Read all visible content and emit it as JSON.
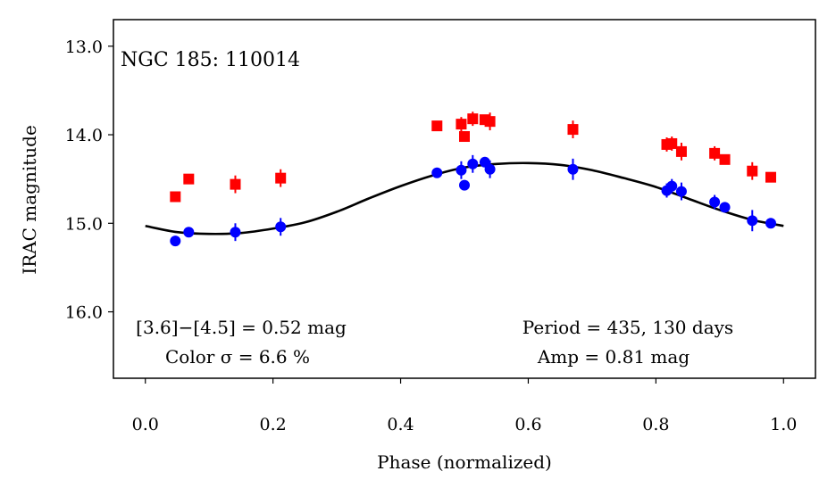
{
  "chart_data": {
    "type": "scatter",
    "title": "NGC 185:  110014",
    "xlabel": "Phase (normalized)",
    "ylabel": "IRAC magnitude",
    "xlim": [
      -0.05,
      1.05
    ],
    "ylim": [
      16.75,
      12.7
    ],
    "y_inverted": true,
    "grid": false,
    "x_ticks": [
      0.0,
      0.2,
      0.4,
      0.6,
      0.8,
      1.0
    ],
    "x_tick_labels": [
      "0.0",
      "0.2",
      "0.4",
      "0.6",
      "0.8",
      "1.0"
    ],
    "y_ticks": [
      13.0,
      14.0,
      15.0,
      16.0
    ],
    "y_tick_labels": [
      "13.0",
      "14.0",
      "15.0",
      "16.0"
    ],
    "series": [
      {
        "name": "[3.6] (blue circles)",
        "color": "#0000ff",
        "marker": "circle",
        "points": [
          {
            "x": 0.047,
            "y": 15.2,
            "err": 0.0
          },
          {
            "x": 0.068,
            "y": 15.1,
            "err": 0.0
          },
          {
            "x": 0.141,
            "y": 15.1,
            "err": 0.1
          },
          {
            "x": 0.212,
            "y": 15.04,
            "err": 0.1
          },
          {
            "x": 0.457,
            "y": 14.43,
            "err": 0.0
          },
          {
            "x": 0.495,
            "y": 14.4,
            "err": 0.1
          },
          {
            "x": 0.5,
            "y": 14.57,
            "err": 0.0
          },
          {
            "x": 0.513,
            "y": 14.33,
            "err": 0.1
          },
          {
            "x": 0.532,
            "y": 14.31,
            "err": 0.0
          },
          {
            "x": 0.54,
            "y": 14.39,
            "err": 0.1
          },
          {
            "x": 0.67,
            "y": 14.39,
            "err": 0.12
          },
          {
            "x": 0.817,
            "y": 14.63,
            "err": 0.08
          },
          {
            "x": 0.825,
            "y": 14.58,
            "err": 0.08
          },
          {
            "x": 0.84,
            "y": 14.64,
            "err": 0.1
          },
          {
            "x": 0.892,
            "y": 14.76,
            "err": 0.08
          },
          {
            "x": 0.908,
            "y": 14.82,
            "err": 0.0
          },
          {
            "x": 0.951,
            "y": 14.97,
            "err": 0.12
          },
          {
            "x": 0.98,
            "y": 15.0,
            "err": 0.0
          }
        ]
      },
      {
        "name": "[4.5] (red squares)",
        "color": "#ff0000",
        "marker": "square",
        "points": [
          {
            "x": 0.047,
            "y": 14.7,
            "err": 0.05
          },
          {
            "x": 0.068,
            "y": 14.5,
            "err": 0.0
          },
          {
            "x": 0.141,
            "y": 14.56,
            "err": 0.1
          },
          {
            "x": 0.212,
            "y": 14.49,
            "err": 0.1
          },
          {
            "x": 0.457,
            "y": 13.9,
            "err": 0.0
          },
          {
            "x": 0.495,
            "y": 13.88,
            "err": 0.08
          },
          {
            "x": 0.5,
            "y": 14.02,
            "err": 0.06
          },
          {
            "x": 0.513,
            "y": 13.82,
            "err": 0.08
          },
          {
            "x": 0.532,
            "y": 13.83,
            "err": 0.0
          },
          {
            "x": 0.54,
            "y": 13.85,
            "err": 0.1
          },
          {
            "x": 0.67,
            "y": 13.94,
            "err": 0.1
          },
          {
            "x": 0.817,
            "y": 14.11,
            "err": 0.08
          },
          {
            "x": 0.825,
            "y": 14.1,
            "err": 0.08
          },
          {
            "x": 0.84,
            "y": 14.19,
            "err": 0.1
          },
          {
            "x": 0.892,
            "y": 14.21,
            "err": 0.08
          },
          {
            "x": 0.908,
            "y": 14.28,
            "err": 0.0
          },
          {
            "x": 0.951,
            "y": 14.41,
            "err": 0.1
          },
          {
            "x": 0.98,
            "y": 14.48,
            "err": 0.0
          }
        ]
      }
    ],
    "model_curve": {
      "name": "sinusoidal fit",
      "color": "#000000",
      "x": [
        0.0,
        0.05,
        0.1,
        0.15,
        0.2,
        0.25,
        0.3,
        0.35,
        0.4,
        0.45,
        0.5,
        0.55,
        0.6,
        0.65,
        0.7,
        0.75,
        0.8,
        0.85,
        0.9,
        0.95,
        1.0
      ],
      "y": [
        15.03,
        15.1,
        15.12,
        15.11,
        15.06,
        14.99,
        14.87,
        14.72,
        14.58,
        14.46,
        14.37,
        14.33,
        14.32,
        14.34,
        14.4,
        14.49,
        14.59,
        14.72,
        14.85,
        14.96,
        15.03
      ]
    },
    "annotations": {
      "color_line1": "[3.6]−[4.5] = 0.52 mag",
      "color_line2": "Color σ = 6.6 %",
      "period": "Period = 435, 130 days",
      "amp": "Amp = 0.81 mag"
    }
  }
}
